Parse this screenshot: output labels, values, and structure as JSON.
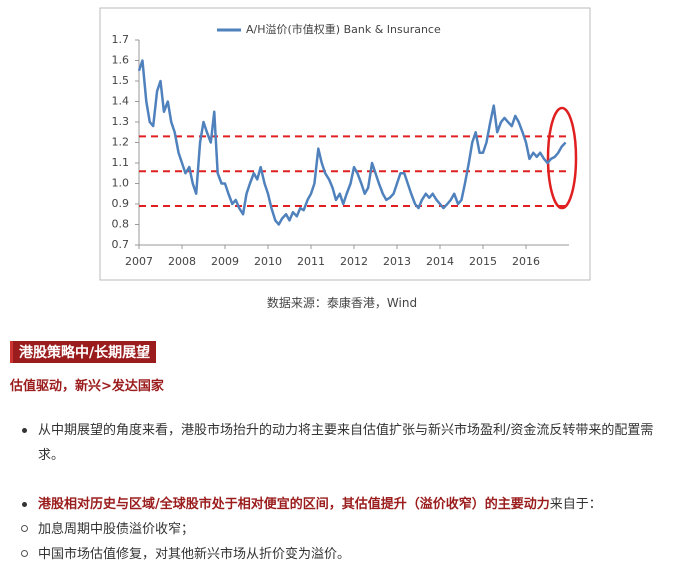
{
  "chart_data": {
    "type": "line",
    "legend_title": null,
    "series": [
      {
        "name": "A/H溢价(市值权重) Bank & Insurance",
        "color": "#4f81bd",
        "values": [
          1.55,
          1.6,
          1.4,
          1.3,
          1.28,
          1.45,
          1.5,
          1.35,
          1.4,
          1.3,
          1.25,
          1.15,
          1.1,
          1.05,
          1.08,
          1.0,
          0.95,
          1.2,
          1.3,
          1.25,
          1.2,
          1.35,
          1.05,
          1.0,
          1.0,
          0.95,
          0.9,
          0.92,
          0.88,
          0.85,
          0.95,
          1.0,
          1.05,
          1.02,
          1.08,
          1.0,
          0.95,
          0.88,
          0.82,
          0.8,
          0.83,
          0.85,
          0.82,
          0.86,
          0.84,
          0.88,
          0.87,
          0.92,
          0.95,
          1.0,
          1.17,
          1.1,
          1.05,
          1.02,
          0.98,
          0.92,
          0.95,
          0.9,
          0.95,
          1.0,
          1.08,
          1.05,
          1.0,
          0.95,
          0.98,
          1.1,
          1.05,
          1.0,
          0.95,
          0.92,
          0.93,
          0.95,
          1.0,
          1.05,
          1.05,
          1.0,
          0.95,
          0.9,
          0.88,
          0.92,
          0.95,
          0.93,
          0.95,
          0.92,
          0.9,
          0.88,
          0.9,
          0.92,
          0.95,
          0.9,
          0.92,
          1.0,
          1.1,
          1.2,
          1.25,
          1.15,
          1.15,
          1.2,
          1.3,
          1.38,
          1.25,
          1.3,
          1.32,
          1.3,
          1.28,
          1.33,
          1.3,
          1.25,
          1.2,
          1.12,
          1.15,
          1.13,
          1.15,
          1.12,
          1.1,
          1.12,
          1.13,
          1.15,
          1.18,
          1.2
        ]
      }
    ],
    "x": [
      2007.0,
      2007.08,
      2007.17,
      2007.25,
      2007.33,
      2007.42,
      2007.5,
      2007.58,
      2007.67,
      2007.75,
      2007.83,
      2007.92,
      2008.0,
      2008.08,
      2008.17,
      2008.25,
      2008.33,
      2008.42,
      2008.5,
      2008.58,
      2008.67,
      2008.75,
      2008.83,
      2008.92,
      2009.0,
      2009.08,
      2009.17,
      2009.25,
      2009.33,
      2009.42,
      2009.5,
      2009.58,
      2009.67,
      2009.75,
      2009.83,
      2009.92,
      2010.0,
      2010.08,
      2010.17,
      2010.25,
      2010.33,
      2010.42,
      2010.5,
      2010.58,
      2010.67,
      2010.75,
      2010.83,
      2010.92,
      2011.0,
      2011.08,
      2011.17,
      2011.25,
      2011.33,
      2011.42,
      2011.5,
      2011.58,
      2011.67,
      2011.75,
      2011.83,
      2011.92,
      2012.0,
      2012.08,
      2012.17,
      2012.25,
      2012.33,
      2012.42,
      2012.5,
      2012.58,
      2012.67,
      2012.75,
      2012.83,
      2012.92,
      2013.0,
      2013.08,
      2013.17,
      2013.25,
      2013.33,
      2013.42,
      2013.5,
      2013.58,
      2013.67,
      2013.75,
      2013.83,
      2013.92,
      2014.0,
      2014.08,
      2014.17,
      2014.25,
      2014.33,
      2014.42,
      2014.5,
      2014.58,
      2014.67,
      2014.75,
      2014.83,
      2014.92,
      2015.0,
      2015.08,
      2015.17,
      2015.25,
      2015.33,
      2015.42,
      2015.5,
      2015.58,
      2015.67,
      2015.75,
      2015.83,
      2015.92,
      2016.0,
      2016.08,
      2016.17,
      2016.25,
      2016.33,
      2016.42,
      2016.5,
      2016.58,
      2016.67,
      2016.75,
      2016.83,
      2016.92
    ],
    "xlim": [
      2007,
      2017
    ],
    "xticks": [
      2007,
      2008,
      2009,
      2010,
      2011,
      2012,
      2013,
      2014,
      2015,
      2016
    ],
    "ylim": [
      0.7,
      1.7
    ],
    "yticks": [
      0.7,
      0.8,
      0.9,
      {
        "value": 1,
        "label": "1.0"
      },
      1.1,
      1.2,
      1.3,
      1.4,
      1.5,
      1.6,
      1.7
    ],
    "reference_lines": [
      1.23,
      1.06,
      0.89
    ],
    "reference_color": "#e02020"
  },
  "caption": "数据来源：泰康香港，Wind",
  "section_title": "港股策略中/长期展望",
  "subtitle": "估值驱动，新兴>发达国家",
  "bullets": [
    "从中期展望的角度来看，港股市场抬升的动力将主要来自估值扩张与新兴市场盈利/资金流反转带来的配置需求。"
  ],
  "point2": {
    "bold": "港股相对历史与区域/全球股市处于相对便宜的区间，其估值提升（溢价收窄）的主要动力",
    "rest": "来自于："
  },
  "sub_bullets": [
    "加息周期中股债溢价收窄；",
    "中国市场估值修复，对其他新兴市场从折价变为溢价。"
  ]
}
